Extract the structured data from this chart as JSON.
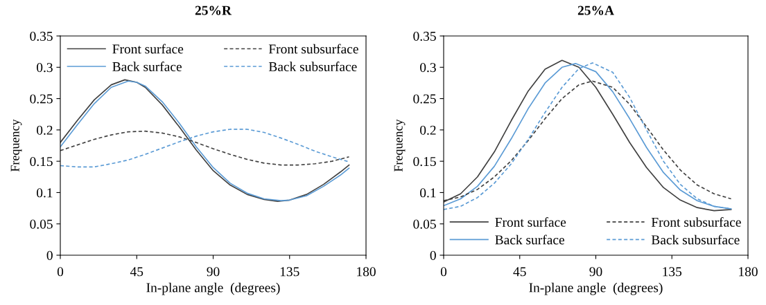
{
  "chart_data": [
    {
      "type": "line",
      "title": "25%R",
      "xlabel": "In-plane angle  (degrees)",
      "ylabel": "Frequency",
      "xlim": [
        0,
        180
      ],
      "xticks": [
        0,
        45,
        90,
        135,
        180
      ],
      "ylim": [
        0,
        0.35
      ],
      "yticks": [
        0,
        0.05,
        0.1,
        0.15,
        0.2,
        0.25,
        0.3,
        0.35
      ],
      "grid": false,
      "legend": "top",
      "marker": "none",
      "series": [
        {
          "name": "Front surface",
          "color": "#404040",
          "line_style": "solid",
          "x": [
            0,
            10,
            20,
            30,
            38,
            45,
            50,
            60,
            70,
            80,
            90,
            100,
            110,
            120,
            128,
            135,
            145,
            155,
            165,
            170
          ],
          "values": [
            0.18,
            0.215,
            0.248,
            0.272,
            0.28,
            0.276,
            0.268,
            0.24,
            0.205,
            0.168,
            0.135,
            0.112,
            0.097,
            0.089,
            0.086,
            0.088,
            0.097,
            0.113,
            0.133,
            0.144
          ]
        },
        {
          "name": "Front subsurface",
          "color": "#404040",
          "line_style": "dashed",
          "x": [
            0,
            10,
            20,
            30,
            40,
            50,
            60,
            70,
            80,
            90,
            100,
            110,
            120,
            130,
            140,
            150,
            160,
            170
          ],
          "values": [
            0.167,
            0.176,
            0.185,
            0.192,
            0.197,
            0.198,
            0.195,
            0.189,
            0.18,
            0.17,
            0.161,
            0.153,
            0.147,
            0.144,
            0.144,
            0.146,
            0.15,
            0.157
          ]
        },
        {
          "name": "Back surface",
          "color": "#5b9bd5",
          "line_style": "solid",
          "x": [
            0,
            10,
            20,
            30,
            40,
            45,
            50,
            60,
            70,
            80,
            90,
            100,
            110,
            120,
            130,
            135,
            145,
            155,
            165,
            170
          ],
          "values": [
            0.173,
            0.208,
            0.242,
            0.268,
            0.278,
            0.276,
            0.27,
            0.245,
            0.211,
            0.173,
            0.14,
            0.115,
            0.099,
            0.09,
            0.087,
            0.088,
            0.095,
            0.11,
            0.128,
            0.139
          ]
        },
        {
          "name": "Back subsurface",
          "color": "#5b9bd5",
          "line_style": "dashed",
          "x": [
            0,
            10,
            20,
            30,
            40,
            50,
            60,
            70,
            80,
            90,
            100,
            110,
            120,
            130,
            140,
            150,
            160,
            170
          ],
          "values": [
            0.143,
            0.141,
            0.141,
            0.146,
            0.152,
            0.161,
            0.171,
            0.181,
            0.19,
            0.197,
            0.201,
            0.201,
            0.196,
            0.187,
            0.177,
            0.166,
            0.157,
            0.149
          ]
        }
      ]
    },
    {
      "type": "line",
      "title": "25%A",
      "xlabel": "In-plane angle  (degrees)",
      "ylabel": "Frequency",
      "xlim": [
        0,
        180
      ],
      "xticks": [
        0,
        45,
        90,
        135,
        180
      ],
      "ylim": [
        0,
        0.35
      ],
      "yticks": [
        0,
        0.05,
        0.1,
        0.15,
        0.2,
        0.25,
        0.3,
        0.35
      ],
      "grid": false,
      "legend": "bottom",
      "marker": "none",
      "series": [
        {
          "name": "Front surface",
          "color": "#404040",
          "line_style": "solid",
          "x": [
            0,
            10,
            20,
            30,
            40,
            50,
            60,
            70,
            80,
            90,
            100,
            110,
            120,
            130,
            140,
            150,
            160,
            170
          ],
          "values": [
            0.085,
            0.098,
            0.125,
            0.165,
            0.215,
            0.262,
            0.297,
            0.311,
            0.3,
            0.268,
            0.225,
            0.18,
            0.14,
            0.108,
            0.088,
            0.076,
            0.071,
            0.073
          ]
        },
        {
          "name": "Front subsurface",
          "color": "#404040",
          "line_style": "dashed",
          "x": [
            0,
            10,
            20,
            30,
            40,
            50,
            60,
            70,
            80,
            88,
            100,
            110,
            120,
            130,
            140,
            150,
            160,
            170
          ],
          "values": [
            0.087,
            0.093,
            0.105,
            0.125,
            0.151,
            0.183,
            0.218,
            0.25,
            0.272,
            0.278,
            0.268,
            0.241,
            0.205,
            0.168,
            0.136,
            0.112,
            0.098,
            0.09
          ]
        },
        {
          "name": "Back surface",
          "color": "#5b9bd5",
          "line_style": "solid",
          "x": [
            0,
            10,
            20,
            30,
            40,
            50,
            60,
            70,
            78,
            90,
            100,
            110,
            120,
            130,
            140,
            150,
            160,
            170
          ],
          "values": [
            0.079,
            0.09,
            0.11,
            0.142,
            0.186,
            0.234,
            0.275,
            0.3,
            0.306,
            0.293,
            0.261,
            0.218,
            0.172,
            0.132,
            0.104,
            0.087,
            0.078,
            0.074
          ]
        },
        {
          "name": "Back subsurface",
          "color": "#5b9bd5",
          "line_style": "dashed",
          "x": [
            0,
            10,
            20,
            30,
            40,
            50,
            60,
            70,
            80,
            88,
            100,
            110,
            120,
            130,
            140,
            150,
            160,
            170
          ],
          "values": [
            0.073,
            0.078,
            0.092,
            0.115,
            0.146,
            0.185,
            0.228,
            0.268,
            0.298,
            0.307,
            0.292,
            0.252,
            0.2,
            0.15,
            0.113,
            0.09,
            0.078,
            0.074
          ]
        }
      ]
    }
  ]
}
